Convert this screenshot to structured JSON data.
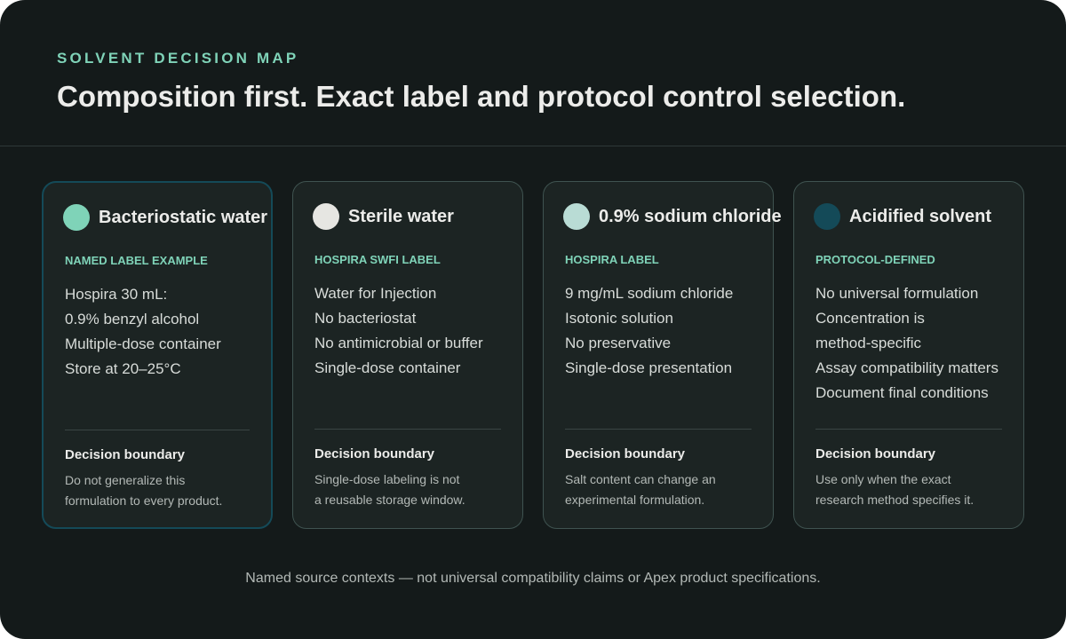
{
  "header": {
    "eyebrow": "SOLVENT DECISION MAP",
    "title": "Composition first. Exact label and protocol control selection."
  },
  "cards": [
    {
      "name": "Bacteriostatic water",
      "source": "NAMED LABEL EXAMPLE",
      "lines": [
        "Hospira 30 mL:",
        "0.9% benzyl alcohol",
        "Multiple-dose container",
        "Store at 20–25°C"
      ],
      "boundary_title": "Decision boundary",
      "boundary_lines": [
        "Do not generalize this",
        "formulation to every product."
      ]
    },
    {
      "name": "Sterile water",
      "source": "HOSPIRA SWFI LABEL",
      "lines": [
        "Water for Injection",
        "No bacteriostat",
        "No antimicrobial or buffer",
        "Single-dose container"
      ],
      "boundary_title": "Decision boundary",
      "boundary_lines": [
        "Single-dose labeling is not",
        "a reusable storage window."
      ]
    },
    {
      "name": "0.9% sodium chloride",
      "source": "HOSPIRA LABEL",
      "lines": [
        "9 mg/mL sodium chloride",
        "Isotonic solution",
        "No preservative",
        "Single-dose presentation"
      ],
      "boundary_title": "Decision boundary",
      "boundary_lines": [
        "Salt content can change an",
        "experimental formulation."
      ]
    },
    {
      "name": "Acidified solvent",
      "source": "PROTOCOL-DEFINED",
      "lines": [
        "No universal formulation",
        "Concentration is",
        "method-specific",
        "Assay compatibility matters",
        "Document final conditions"
      ],
      "boundary_title": "Decision boundary",
      "boundary_lines": [
        "Use only when the exact",
        "research method specifies it."
      ]
    }
  ],
  "footer": "Named source contexts — not universal compatibility claims or Apex product specifications."
}
